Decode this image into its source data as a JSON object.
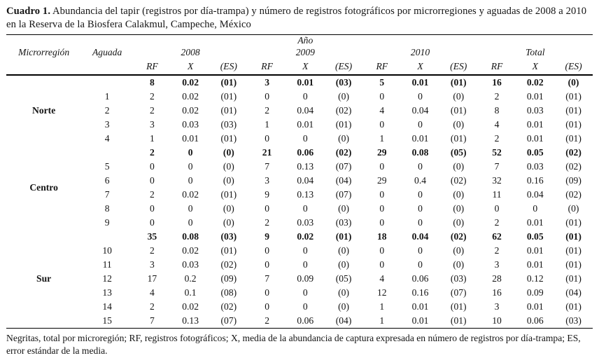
{
  "title": {
    "label": "Cuadro 1.",
    "text": " Abundancia del tapir (registros por día-trampa) y número de registros fotográficos por microrregiones y aguadas de 2008 a 2010 en la Reserva de la Biosfera Calakmul, Campeche, México"
  },
  "header": {
    "col_microregion": "Microrregión",
    "col_aguada": "Aguada",
    "anio": "Año",
    "years": [
      "2008",
      "2009",
      "2010",
      "Total"
    ],
    "sub": [
      "RF",
      "X",
      "(ES)"
    ]
  },
  "chart_data": {
    "type": "table",
    "title": "Cuadro 1. Abundancia del tapir (registros por día-trampa) y número de registros fotográficos por microrregiones y aguadas de 2008 a 2010 en la Reserva de la Biosfera Calakmul, Campeche, México",
    "columns": [
      "Microrregión",
      "Aguada",
      "2008 RF",
      "2008 X",
      "2008 (ES)",
      "2009 RF",
      "2009 X",
      "2009 (ES)",
      "2010 RF",
      "2010 X",
      "2010 (ES)",
      "Total RF",
      "Total X",
      "Total (ES)"
    ]
  },
  "groups": [
    {
      "region": "Norte",
      "total": [
        "8",
        "0.02",
        "(01)",
        "3",
        "0.01",
        "(03)",
        "5",
        "0.01",
        "(01)",
        "16",
        "0.02",
        "(0)"
      ],
      "rows": [
        {
          "aguada": "1",
          "values": [
            "2",
            "0.02",
            "(01)",
            "0",
            "0",
            "(0)",
            "0",
            "0",
            "(0)",
            "2",
            "0.01",
            "(01)"
          ]
        },
        {
          "aguada": "2",
          "values": [
            "2",
            "0.02",
            "(01)",
            "2",
            "0.04",
            "(02)",
            "4",
            "0.04",
            "(01)",
            "8",
            "0.03",
            "(01)"
          ]
        },
        {
          "aguada": "3",
          "values": [
            "3",
            "0.03",
            "(03)",
            "1",
            "0.01",
            "(01)",
            "0",
            "0",
            "(0)",
            "4",
            "0.01",
            "(01)"
          ]
        },
        {
          "aguada": "4",
          "values": [
            "1",
            "0.01",
            "(01)",
            "0",
            "0",
            "(0)",
            "1",
            "0.01",
            "(01)",
            "2",
            "0.01",
            "(01)"
          ]
        }
      ]
    },
    {
      "region": "Centro",
      "total": [
        "2",
        "0",
        "(0)",
        "21",
        "0.06",
        "(02)",
        "29",
        "0.08",
        "(05)",
        "52",
        "0.05",
        "(02)"
      ],
      "rows": [
        {
          "aguada": "5",
          "values": [
            "0",
            "0",
            "(0)",
            "7",
            "0.13",
            "(07)",
            "0",
            "0",
            "(0)",
            "7",
            "0.03",
            "(02)"
          ]
        },
        {
          "aguada": "6",
          "values": [
            "0",
            "0",
            "(0)",
            "3",
            "0.04",
            "(04)",
            "29",
            "0.4",
            "(02)",
            "32",
            "0.16",
            "(09)"
          ]
        },
        {
          "aguada": "7",
          "values": [
            "2",
            "0.02",
            "(01)",
            "9",
            "0.13",
            "(07)",
            "0",
            "0",
            "(0)",
            "11",
            "0.04",
            "(02)"
          ]
        },
        {
          "aguada": "8",
          "values": [
            "0",
            "0",
            "(0)",
            "0",
            "0",
            "(0)",
            "0",
            "0",
            "(0)",
            "0",
            "0",
            "(0)"
          ]
        },
        {
          "aguada": "9",
          "values": [
            "0",
            "0",
            "(0)",
            "2",
            "0.03",
            "(03)",
            "0",
            "0",
            "(0)",
            "2",
            "0.01",
            "(01)"
          ]
        }
      ]
    },
    {
      "region": "Sur",
      "total": [
        "35",
        "0.08",
        "(03)",
        "9",
        "0.02",
        "(01)",
        "18",
        "0.04",
        "(02)",
        "62",
        "0.05",
        "(01)"
      ],
      "rows": [
        {
          "aguada": "10",
          "values": [
            "2",
            "0.02",
            "(01)",
            "0",
            "0",
            "(0)",
            "0",
            "0",
            "(0)",
            "2",
            "0.01",
            "(01)"
          ]
        },
        {
          "aguada": "11",
          "values": [
            "3",
            "0.03",
            "(02)",
            "0",
            "0",
            "(0)",
            "0",
            "0",
            "(0)",
            "3",
            "0.01",
            "(01)"
          ]
        },
        {
          "aguada": "12",
          "values": [
            "17",
            "0.2",
            "(09)",
            "7",
            "0.09",
            "(05)",
            "4",
            "0.06",
            "(03)",
            "28",
            "0.12",
            "(01)"
          ]
        },
        {
          "aguada": "13",
          "values": [
            "4",
            "0.1",
            "(08)",
            "0",
            "0",
            "(0)",
            "12",
            "0.16",
            "(07)",
            "16",
            "0.09",
            "(04)"
          ]
        },
        {
          "aguada": "14",
          "values": [
            "2",
            "0.02",
            "(02)",
            "0",
            "0",
            "(0)",
            "1",
            "0.01",
            "(01)",
            "3",
            "0.01",
            "(01)"
          ]
        },
        {
          "aguada": "15",
          "values": [
            "7",
            "0.13",
            "(07)",
            "2",
            "0.06",
            "(04)",
            "1",
            "0.01",
            "(01)",
            "10",
            "0.06",
            "(03)"
          ]
        }
      ]
    }
  ],
  "footnote": "Negritas, total por microregión; RF, registros fotográficos; X, media de la abundancia de captura expresada en número de registros por día-trampa; ES, error estándar de la media."
}
